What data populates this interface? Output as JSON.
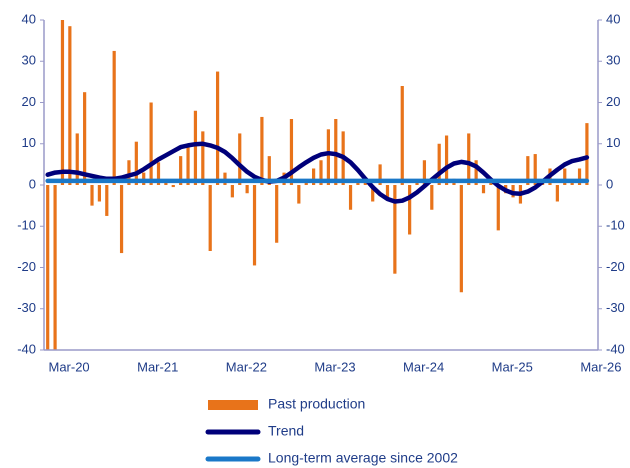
{
  "chart_data": {
    "type": "bar_line",
    "categories": [
      null,
      "Mar-20",
      null,
      null,
      null,
      null,
      null,
      null,
      null,
      null,
      null,
      null,
      null,
      "Mar-21",
      null,
      null,
      null,
      null,
      null,
      null,
      null,
      null,
      null,
      null,
      null,
      "Mar-22",
      null,
      null,
      null,
      null,
      null,
      null,
      null,
      null,
      null,
      null,
      null,
      "Mar-23",
      null,
      null,
      null,
      null,
      null,
      null,
      null,
      null,
      null,
      null,
      null,
      "Mar-24",
      null,
      null,
      null,
      null,
      null,
      null,
      null,
      null,
      null,
      null,
      null,
      "Mar-25",
      null,
      null,
      null,
      null,
      null,
      null,
      null,
      null,
      null,
      null,
      null,
      "Mar-26"
    ],
    "series": [
      {
        "name": "Past production",
        "kind": "bar",
        "color": "#e8731a",
        "values": [
          -40,
          -40,
          40,
          38.5,
          12.5,
          22.5,
          -5,
          -4,
          -7.5,
          32.5,
          -16.5,
          6,
          10.5,
          3,
          20,
          5.5,
          1,
          -0.5,
          7,
          9.5,
          18,
          13,
          -16,
          27.5,
          3,
          -3,
          12.5,
          -2,
          -19.5,
          16.5,
          7,
          -14,
          3,
          16,
          -4.5,
          1,
          4,
          6,
          13.5,
          16,
          13,
          -6,
          1,
          1,
          -4,
          5,
          -3,
          -21.5,
          24,
          -12,
          1,
          6,
          -6,
          10,
          12,
          1.5,
          -26,
          12.5,
          6,
          -2,
          1,
          -11,
          -2,
          -3,
          -4.5,
          7,
          7.5,
          1,
          4,
          -4,
          4,
          1,
          4,
          15
        ]
      },
      {
        "name": "Trend",
        "kind": "line",
        "color": "#00007a",
        "values": [
          2.5,
          3,
          3.2,
          3.2,
          3,
          2.6,
          2.2,
          1.8,
          1.5,
          1.5,
          1.8,
          2.3,
          2.8,
          3.8,
          5,
          6.2,
          7.2,
          8.2,
          9.2,
          9.6,
          9.9,
          10,
          9.6,
          9,
          8,
          6.5,
          4.8,
          3.2,
          2,
          1.2,
          0.8,
          1,
          1.8,
          3,
          4.3,
          5.5,
          6.6,
          7.4,
          7.7,
          7.5,
          6.8,
          5.5,
          3.6,
          1.5,
          -0.5,
          -2.2,
          -3.4,
          -4,
          -3.8,
          -3,
          -1.8,
          -0.3,
          1.3,
          2.8,
          4.2,
          5.2,
          5.6,
          5.3,
          4.5,
          3,
          1.3,
          -0.2,
          -1.3,
          -2,
          -2.1,
          -1.6,
          -0.6,
          0.8,
          2.3,
          3.7,
          5,
          5.8,
          6.2,
          6.7
        ]
      },
      {
        "name": "Long-term average since 2002",
        "kind": "line",
        "color": "#1a78c8",
        "values": [
          1,
          1,
          1,
          1,
          1,
          1,
          1,
          1,
          1,
          1,
          1,
          1,
          1,
          1,
          1,
          1,
          1,
          1,
          1,
          1,
          1,
          1,
          1,
          1,
          1,
          1,
          1,
          1,
          1,
          1,
          1,
          1,
          1,
          1,
          1,
          1,
          1,
          1,
          1,
          1,
          1,
          1,
          1,
          1,
          1,
          1,
          1,
          1,
          1,
          1,
          1,
          1,
          1,
          1,
          1,
          1,
          1,
          1,
          1,
          1,
          1,
          1,
          1,
          1,
          1,
          1,
          1,
          1,
          1,
          1,
          1,
          1,
          1,
          1
        ]
      }
    ],
    "ylim": [
      -40,
      40
    ],
    "yticks": [
      -40,
      -30,
      -20,
      -10,
      0,
      10,
      20,
      30,
      40
    ],
    "y2lim": [
      -40,
      40
    ],
    "y2ticks": [
      -40,
      -30,
      -20,
      -10,
      0,
      10,
      20,
      30,
      40
    ],
    "legend": "bottom"
  }
}
